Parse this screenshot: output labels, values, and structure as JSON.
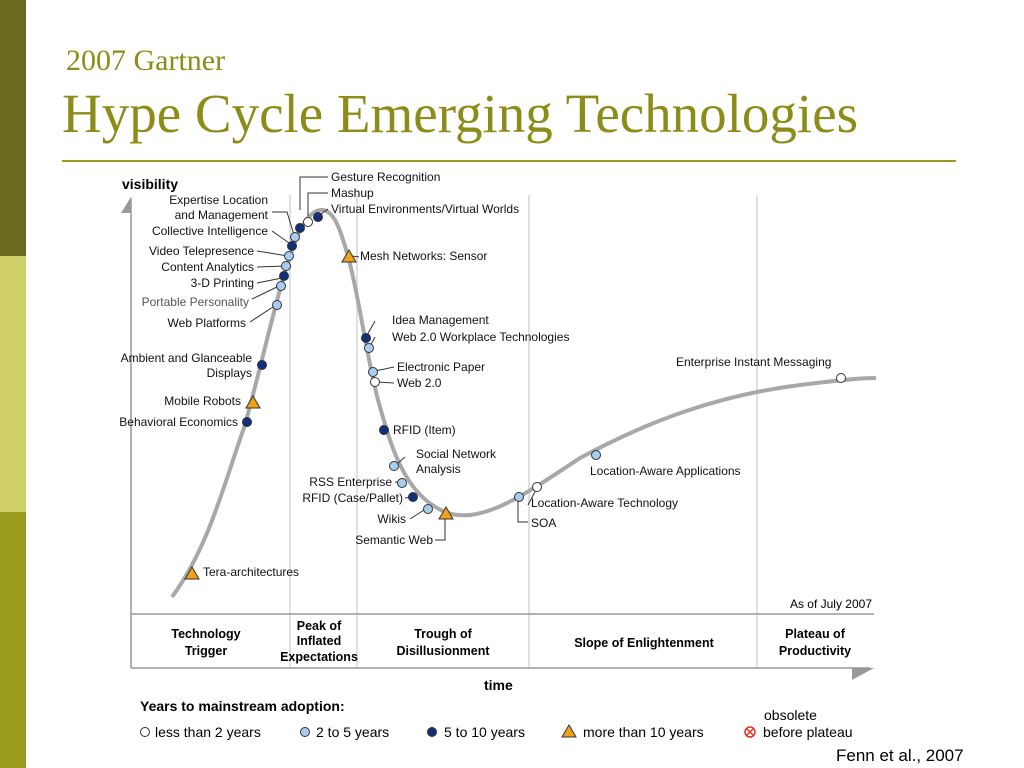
{
  "header": {
    "subtitle": "2007 Gartner",
    "title": "Hype Cycle Emerging Technologies"
  },
  "diagram": {
    "y_axis_label": "visibility",
    "x_axis_label": "time",
    "as_of": "As of July 2007",
    "phases": [
      {
        "id": "trigger",
        "lines": [
          "Technology",
          "Trigger"
        ]
      },
      {
        "id": "peak",
        "lines": [
          "Peak of",
          "Inflated",
          "Expectations"
        ]
      },
      {
        "id": "trough",
        "lines": [
          "Trough of",
          "Disillusionment"
        ]
      },
      {
        "id": "slope",
        "lines": [
          "Slope of Enlightenment"
        ]
      },
      {
        "id": "plateau",
        "lines": [
          "Plateau of",
          "Productivity"
        ]
      }
    ],
    "technologies": [
      {
        "name": "Gesture Recognition",
        "adoption": "2 to 5 years"
      },
      {
        "name": "Mashup",
        "adoption": "less than 2 years"
      },
      {
        "name": "Virtual Environments/Virtual Worlds",
        "adoption": "5 to 10 years"
      },
      {
        "name": "Expertise Location and Management",
        "adoption": "5 to 10 years"
      },
      {
        "name": "Collective Intelligence",
        "adoption": "2 to 5 years"
      },
      {
        "name": "Video Telepresence",
        "adoption": "5 to 10 years"
      },
      {
        "name": "Content Analytics",
        "adoption": "2 to 5 years"
      },
      {
        "name": "3-D Printing",
        "adoption": "2 to 5 years"
      },
      {
        "name": "Portable Personality",
        "adoption": "5 to 10 years"
      },
      {
        "name": "Web Platforms",
        "adoption": "2 to 5 years"
      },
      {
        "name": "Ambient and Glanceable Displays",
        "adoption": "5 to 10 years"
      },
      {
        "name": "Mobile Robots",
        "adoption": "more than 10 years"
      },
      {
        "name": "Behavioral Economics",
        "adoption": "5 to 10 years"
      },
      {
        "name": "Tera-architectures",
        "adoption": "more than 10 years"
      },
      {
        "name": "Mesh Networks: Sensor",
        "adoption": "more than 10 years"
      },
      {
        "name": "Idea Management",
        "adoption": "5 to 10 years"
      },
      {
        "name": "Web 2.0 Workplace Technologies",
        "adoption": "2 to 5 years"
      },
      {
        "name": "Electronic Paper",
        "adoption": "2 to 5 years"
      },
      {
        "name": "Web 2.0",
        "adoption": "less than 2 years"
      },
      {
        "name": "RFID (Item)",
        "adoption": "5 to 10 years"
      },
      {
        "name": "Social Network Analysis",
        "adoption": "2 to 5 years"
      },
      {
        "name": "RSS Enterprise",
        "adoption": "2 to 5 years"
      },
      {
        "name": "RFID (Case/Pallet)",
        "adoption": "5 to 10 years"
      },
      {
        "name": "Wikis",
        "adoption": "2 to 5 years"
      },
      {
        "name": "Semantic Web",
        "adoption": "more than 10 years"
      },
      {
        "name": "SOA",
        "adoption": "2 to 5 years"
      },
      {
        "name": "Location-Aware Technology",
        "adoption": "less than 2 years"
      },
      {
        "name": "Location-Aware Applications",
        "adoption": "2 to 5 years"
      },
      {
        "name": "Enterprise Instant Messaging",
        "adoption": "less than 2 years"
      }
    ],
    "legend": {
      "title": "Years to mainstream adoption:",
      "items": [
        {
          "label": "less than 2 years",
          "symbol": "open-circle"
        },
        {
          "label": "2 to 5 years",
          "symbol": "light-blue-circle"
        },
        {
          "label": "5 to 10 years",
          "symbol": "dark-blue-circle"
        },
        {
          "label": "more than 10 years",
          "symbol": "orange-triangle"
        },
        {
          "label_lines": [
            "obsolete",
            "before plateau"
          ],
          "symbol": "red-x-circle"
        }
      ]
    },
    "colors": {
      "curve": "#a8a8a8",
      "axis": "#999999",
      "light_blue": "#a9cdf0",
      "dark_blue": "#12307a",
      "triangle": "#f0a11a",
      "obsolete": "#e0302a",
      "title": "#8c8c18"
    }
  },
  "citation": "Fenn et al., 2007"
}
